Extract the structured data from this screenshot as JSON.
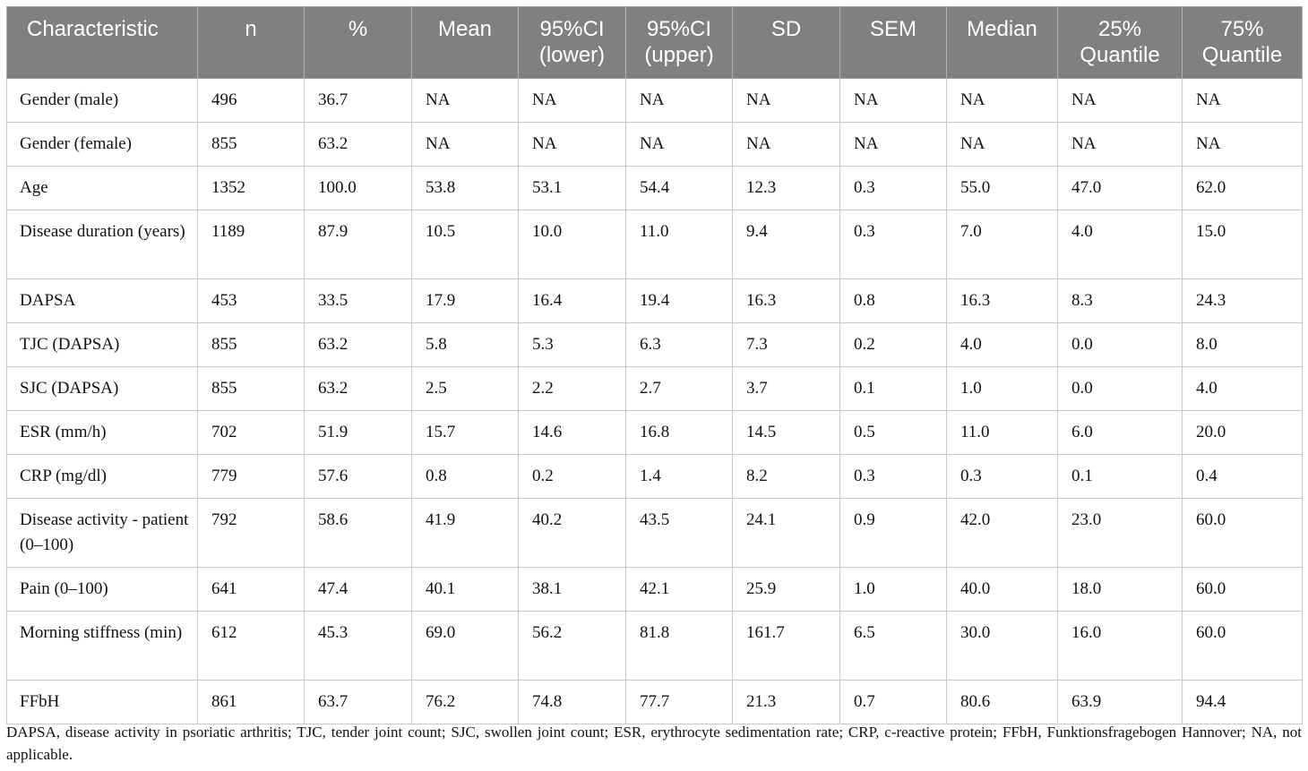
{
  "table": {
    "columns": [
      "Characteristic",
      "n",
      "%",
      "Mean",
      "95%CI (lower)",
      "95%CI (upper)",
      "SD",
      "SEM",
      "Median",
      "25% Quantile",
      "75% Quantile"
    ],
    "rows": [
      [
        "Gender (male)",
        "496",
        "36.7",
        "NA",
        "NA",
        "NA",
        "NA",
        "NA",
        "NA",
        "NA",
        "NA"
      ],
      [
        "Gender (female)",
        "855",
        "63.2",
        "NA",
        "NA",
        "NA",
        "NA",
        "NA",
        "NA",
        "NA",
        "NA"
      ],
      [
        "Age",
        "1352",
        "100.0",
        "53.8",
        "53.1",
        "54.4",
        "12.3",
        "0.3",
        "55.0",
        "47.0",
        "62.0"
      ],
      [
        "Disease duration (years)",
        "1189",
        "87.9",
        "10.5",
        "10.0",
        "11.0",
        "9.4",
        "0.3",
        "7.0",
        "4.0",
        "15.0"
      ],
      [
        "DAPSA",
        "453",
        "33.5",
        "17.9",
        "16.4",
        "19.4",
        "16.3",
        "0.8",
        "16.3",
        "8.3",
        "24.3"
      ],
      [
        "TJC (DAPSA)",
        "855",
        "63.2",
        "5.8",
        "5.3",
        "6.3",
        "7.3",
        "0.2",
        "4.0",
        "0.0",
        "8.0"
      ],
      [
        "SJC (DAPSA)",
        "855",
        "63.2",
        "2.5",
        "2.2",
        "2.7",
        "3.7",
        "0.1",
        "1.0",
        "0.0",
        "4.0"
      ],
      [
        "ESR (mm/h)",
        "702",
        "51.9",
        "15.7",
        "14.6",
        "16.8",
        "14.5",
        "0.5",
        "11.0",
        "6.0",
        "20.0"
      ],
      [
        "CRP (mg/dl)",
        "779",
        "57.6",
        "0.8",
        "0.2",
        "1.4",
        "8.2",
        "0.3",
        "0.3",
        "0.1",
        "0.4"
      ],
      [
        "Disease activity - patient (0–100)",
        "792",
        "58.6",
        "41.9",
        "40.2",
        "43.5",
        "24.1",
        "0.9",
        "42.0",
        "23.0",
        "60.0"
      ],
      [
        "Pain (0–100)",
        "641",
        "47.4",
        "40.1",
        "38.1",
        "42.1",
        "25.9",
        "1.0",
        "40.0",
        "18.0",
        "60.0"
      ],
      [
        "Morning stiffness (min)",
        "612",
        "45.3",
        "69.0",
        "56.2",
        "81.8",
        "161.7",
        "6.5",
        "30.0",
        "16.0",
        "60.0"
      ],
      [
        "FFbH",
        "861",
        "63.7",
        "76.2",
        "74.8",
        "77.7",
        "21.3",
        "0.7",
        "80.6",
        "63.9",
        "94.4"
      ]
    ]
  },
  "footnote": "DAPSA, disease activity in psoriatic arthritis; TJC, tender joint count; SJC, swollen joint count; ESR, erythrocyte sedimentation rate; CRP, c-reactive protein; FFbH, Funktionsfragebogen Hannover; NA, not applicable.",
  "colors": {
    "header_bg": "#808080",
    "header_text": "#ffffff",
    "grid": "#c8c8c8"
  }
}
